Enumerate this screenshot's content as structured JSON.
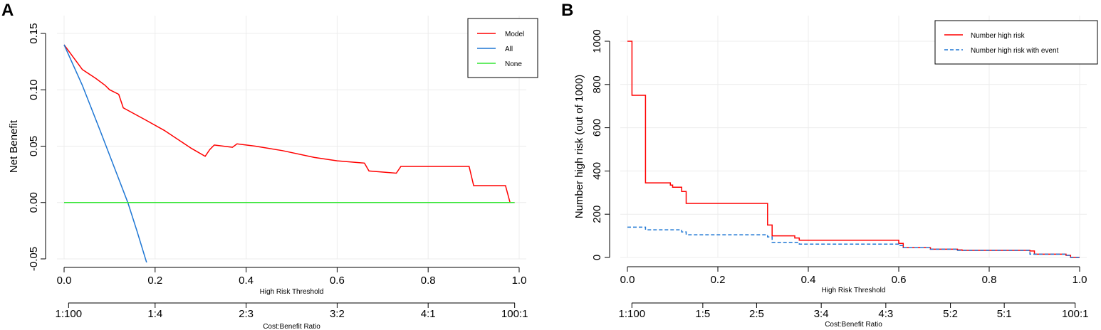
{
  "chart_data": [
    {
      "panel": "A",
      "type": "line",
      "title": "",
      "xlabel": "High Risk Threshold",
      "ylabel": "Net Benefit",
      "secondary_xlabel": "Cost:Benefit Ratio",
      "xlim": [
        0,
        1
      ],
      "ylim": [
        -0.05,
        0.15
      ],
      "x_ticks": [
        0.0,
        0.2,
        0.4,
        0.6,
        0.8,
        1.0
      ],
      "x_tick_labels": [
        "0.0",
        "0.2",
        "0.4",
        "0.6",
        "0.8",
        "1.0"
      ],
      "y_ticks": [
        -0.05,
        0.0,
        0.05,
        0.1,
        0.15
      ],
      "y_tick_labels": [
        "-0.05",
        "0.00",
        "0.05",
        "0.10",
        "0.15"
      ],
      "ratio_ticks": [
        0.0099,
        0.2,
        0.4,
        0.6,
        0.8,
        0.9901
      ],
      "ratio_tick_labels": [
        "1:100",
        "1:4",
        "2:3",
        "3:2",
        "4:1",
        "100:1"
      ],
      "legend_position": "top-right",
      "series": [
        {
          "name": "Model",
          "color": "#ff0000",
          "dash": "solid",
          "x": [
            0.0,
            0.04,
            0.07,
            0.09,
            0.1,
            0.12,
            0.13,
            0.18,
            0.22,
            0.28,
            0.31,
            0.32,
            0.33,
            0.35,
            0.37,
            0.38,
            0.42,
            0.48,
            0.55,
            0.6,
            0.66,
            0.67,
            0.73,
            0.74,
            0.89,
            0.9,
            0.97,
            0.98,
            0.99
          ],
          "y": [
            0.14,
            0.118,
            0.11,
            0.104,
            0.1,
            0.096,
            0.084,
            0.073,
            0.064,
            0.048,
            0.041,
            0.047,
            0.051,
            0.05,
            0.049,
            0.052,
            0.05,
            0.046,
            0.04,
            0.037,
            0.035,
            0.028,
            0.026,
            0.032,
            0.032,
            0.015,
            0.015,
            0.0,
            0.0
          ]
        },
        {
          "name": "All",
          "color": "#1f77d4",
          "dash": "solid",
          "x": [
            0.0,
            0.04,
            0.08,
            0.12,
            0.14,
            0.16,
            0.185
          ],
          "y": [
            0.14,
            0.104,
            0.063,
            0.021,
            0.0,
            -0.025,
            -0.058
          ]
        },
        {
          "name": "None",
          "color": "#33e533",
          "dash": "solid",
          "x": [
            0.0,
            0.99
          ],
          "y": [
            0.0,
            0.0
          ]
        }
      ]
    },
    {
      "panel": "B",
      "type": "line",
      "title": "",
      "xlabel": "High Risk Threshold",
      "ylabel": "Number high risk (out of 1000)",
      "secondary_xlabel": "Cost:Benefit Ratio",
      "xlim": [
        0,
        1
      ],
      "ylim": [
        0,
        1000
      ],
      "x_ticks": [
        0.0,
        0.2,
        0.4,
        0.6,
        0.8,
        1.0
      ],
      "x_tick_labels": [
        "0.0",
        "0.2",
        "0.4",
        "0.6",
        "0.8",
        "1.0"
      ],
      "y_ticks": [
        0,
        200,
        400,
        600,
        800,
        1000
      ],
      "y_tick_labels": [
        "0",
        "200",
        "400",
        "600",
        "800",
        "1000"
      ],
      "ratio_ticks": [
        0.0099,
        0.1667,
        0.2857,
        0.4286,
        0.5714,
        0.7143,
        0.8333,
        0.9901
      ],
      "ratio_tick_labels": [
        "1:100",
        "1:5",
        "2:5",
        "3:4",
        "4:3",
        "5:2",
        "5:1",
        "100:1"
      ],
      "legend_position": "top-right",
      "series": [
        {
          "name": "Number high risk",
          "color": "#ff0000",
          "dash": "solid",
          "x": [
            0.0,
            0.0,
            0.01,
            0.01,
            0.03,
            0.03,
            0.04,
            0.04,
            0.095,
            0.095,
            0.1,
            0.1,
            0.12,
            0.12,
            0.13,
            0.13,
            0.31,
            0.31,
            0.32,
            0.32,
            0.37,
            0.37,
            0.38,
            0.38,
            0.6,
            0.6,
            0.61,
            0.61,
            0.66,
            0.66,
            0.67,
            0.67,
            0.73,
            0.73,
            0.74,
            0.74,
            0.89,
            0.89,
            0.9,
            0.9,
            0.97,
            0.97,
            0.98,
            0.98,
            1.0
          ],
          "y": [
            1000,
            1000,
            1000,
            750,
            750,
            750,
            750,
            345,
            345,
            335,
            335,
            325,
            325,
            305,
            305,
            250,
            250,
            150,
            150,
            100,
            100,
            90,
            90,
            80,
            80,
            65,
            65,
            45,
            45,
            45,
            45,
            38,
            38,
            35,
            35,
            33,
            33,
            30,
            30,
            15,
            15,
            10,
            10,
            0,
            0
          ]
        },
        {
          "name": "Number high risk with event",
          "color": "#1f77d4",
          "dash": "dashed",
          "x": [
            0.0,
            0.04,
            0.04,
            0.12,
            0.12,
            0.13,
            0.13,
            0.31,
            0.31,
            0.32,
            0.32,
            0.38,
            0.38,
            0.6,
            0.6,
            0.61,
            0.61,
            0.67,
            0.67,
            0.73,
            0.73,
            0.89,
            0.89,
            0.97,
            0.97,
            0.98,
            0.98,
            1.0
          ],
          "y": [
            140,
            140,
            128,
            128,
            118,
            118,
            105,
            105,
            95,
            95,
            70,
            70,
            62,
            62,
            55,
            55,
            45,
            45,
            38,
            38,
            33,
            33,
            15,
            15,
            10,
            10,
            0,
            0
          ]
        }
      ]
    }
  ],
  "panels": {
    "a": {
      "letter": "A"
    },
    "b": {
      "letter": "B"
    }
  }
}
